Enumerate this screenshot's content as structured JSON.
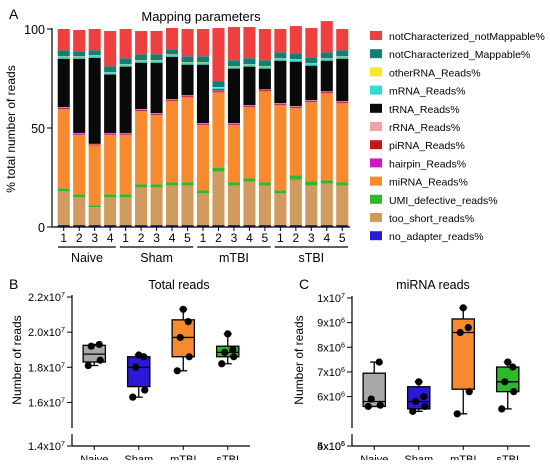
{
  "colors": {
    "notCharacterized_notMappable": "#ef4040",
    "notCharacterized_Mappable": "#0f8078",
    "otherRNA": "#f7e733",
    "mRNA": "#36d8d0",
    "tRNA": "#0a0a0a",
    "rRNA": "#f4a3a3",
    "piRNA": "#c01818",
    "hairpin": "#d118c8",
    "miRNA": "#f78a2e",
    "UMI_defective": "#2cba2c",
    "too_short": "#d19a5e",
    "no_adapter": "#2a1ad8"
  },
  "chart_data": [
    {
      "panel": "A",
      "type": "bar",
      "stacked": true,
      "title": "Mapping parameters",
      "xlabel": "",
      "ylabel": "% total number of reads",
      "ylim": [
        0,
        100
      ],
      "yticks": [
        0,
        50,
        100
      ],
      "group_labels": [
        "Naive",
        "Sham",
        "mTBI",
        "sTBI"
      ],
      "groups": [
        4,
        5,
        5,
        5
      ],
      "categories": [
        "1",
        "2",
        "3",
        "4",
        "1",
        "2",
        "3",
        "4",
        "5",
        "1",
        "2",
        "3",
        "4",
        "5",
        "1",
        "2",
        "3",
        "4",
        "5"
      ],
      "legend": "right",
      "legend_entries": [
        {
          "key": "notCharacterized_notMappable",
          "label": "notCharacterized_notMappable%"
        },
        {
          "key": "notCharacterized_Mappable",
          "label": "notCharacterized_Mappable%"
        },
        {
          "key": "otherRNA",
          "label": "otherRNA_Reads%"
        },
        {
          "key": "mRNA",
          "label": "mRNA_Reads%"
        },
        {
          "key": "tRNA",
          "label": "tRNA_Reads%"
        },
        {
          "key": "rRNA",
          "label": "rRNA_Reads%"
        },
        {
          "key": "piRNA",
          "label": "piRNA_Reads%"
        },
        {
          "key": "hairpin",
          "label": "hairpin_Reads%"
        },
        {
          "key": "miRNA",
          "label": "miRNA_Reads%"
        },
        {
          "key": "UMI_defective",
          "label": "UMI_defective_reads%"
        },
        {
          "key": "too_short",
          "label": "too_short_reads%"
        },
        {
          "key": "no_adapter",
          "label": "no_adapter_reads%"
        }
      ],
      "series": [
        {
          "key": "no_adapter",
          "values": [
            1,
            1,
            1,
            1,
            1,
            1,
            1,
            1,
            1,
            1,
            1,
            1,
            1,
            1,
            1,
            1,
            1,
            1,
            1
          ]
        },
        {
          "key": "too_short",
          "values": [
            17,
            14,
            9,
            14,
            14,
            19,
            19,
            20,
            20,
            16,
            27,
            20,
            22,
            20,
            16,
            23,
            20,
            21,
            20
          ]
        },
        {
          "key": "UMI_defective",
          "values": [
            1.5,
            1.5,
            1,
            1.5,
            1.5,
            1.5,
            1.5,
            1.5,
            1.5,
            1.5,
            2,
            1.5,
            1.5,
            1.5,
            1.5,
            2,
            2,
            1.5,
            1.5
          ]
        },
        {
          "key": "miRNA",
          "values": [
            40,
            30,
            30,
            30,
            30,
            37,
            35,
            41,
            43,
            33,
            38,
            29,
            36,
            46,
            43,
            34,
            40,
            44,
            40
          ]
        },
        {
          "key": "hairpin",
          "values": [
            0.3,
            0.3,
            0.3,
            0.3,
            0.3,
            0.3,
            0.3,
            0.3,
            0.3,
            0.3,
            0.3,
            0.3,
            0.3,
            0.3,
            0.3,
            0.3,
            0.3,
            0.3,
            0.3
          ]
        },
        {
          "key": "piRNA",
          "values": [
            0.4,
            0.4,
            0.4,
            0.4,
            0.4,
            0.4,
            0.4,
            0.4,
            0.4,
            0.4,
            0.4,
            0.4,
            0.4,
            0.4,
            0.4,
            0.4,
            0.4,
            0.4,
            0.4
          ]
        },
        {
          "key": "rRNA",
          "values": [
            0.3,
            0.3,
            0.3,
            0.3,
            0.3,
            0.3,
            0.3,
            0.3,
            0.3,
            0.3,
            0.3,
            0.3,
            0.3,
            0.3,
            0.3,
            0.3,
            0.3,
            0.3,
            0.3
          ]
        },
        {
          "key": "tRNA",
          "values": [
            24.5,
            37.5,
            43.5,
            29.5,
            33.5,
            23.5,
            25.5,
            21.5,
            15.5,
            29.5,
            0.5,
            27.5,
            19.5,
            10.5,
            21.5,
            22.5,
            17.5,
            15.5,
            21.5
          ]
        },
        {
          "key": "mRNA",
          "values": [
            1,
            1,
            1,
            1,
            1,
            1,
            1,
            1,
            1,
            1,
            1,
            1,
            1,
            1,
            1,
            1,
            1,
            1,
            1
          ]
        },
        {
          "key": "otherRNA",
          "values": [
            0.2,
            0.2,
            0.2,
            0.2,
            0.2,
            0.2,
            0.2,
            0.2,
            0.2,
            0.2,
            0.2,
            0.2,
            0.2,
            0.2,
            0.2,
            0.2,
            0.2,
            0.2,
            0.2
          ]
        },
        {
          "key": "notCharacterized_Mappable",
          "values": [
            3,
            2.5,
            2.5,
            3,
            3,
            3,
            3,
            2.5,
            3,
            3,
            3,
            3,
            3,
            3,
            3,
            3,
            3,
            3,
            3
          ]
        },
        {
          "key": "notCharacterized_notMappable",
          "values": [
            10.8,
            10.8,
            10.8,
            17.8,
            14.8,
            11.8,
            11.8,
            10.8,
            13.8,
            13.8,
            26.8,
            16.8,
            15.8,
            15.8,
            11.8,
            13.8,
            14.8,
            15.8,
            10.8
          ]
        }
      ]
    },
    {
      "panel": "B",
      "type": "boxplot",
      "title": "Total reads",
      "ylabel": "Number of reads",
      "categories": [
        "Naive",
        "Sham",
        "mTBI",
        "sTBI"
      ],
      "box_colors": [
        "#a8a8a8",
        "#2a1ad8",
        "#f78a2e",
        "#2cba2c"
      ],
      "yticks": [
        "1.4x10^7",
        "1.6x10^7",
        "1.8x10^7",
        "2.0x10^7",
        "2.2x10^7"
      ],
      "ylim": [
        14000000.0,
        22000000.0
      ],
      "y_axis_break": [
        14100000.0,
        15000000.0
      ],
      "boxes": [
        {
          "min": 18100000.0,
          "q1": 18300000.0,
          "median": 18750000.0,
          "q3": 19250000.0,
          "max": 19300000.0,
          "points": [
            18100000.0,
            18400000.0,
            19200000.0,
            19300000.0
          ]
        },
        {
          "min": 16300000.0,
          "q1": 16900000.0,
          "median": 18000000.0,
          "q3": 18600000.0,
          "max": 18700000.0,
          "points": [
            16300000.0,
            16700000.0,
            18000000.0,
            18600000.0,
            18700000.0
          ]
        },
        {
          "min": 17800000.0,
          "q1": 18600000.0,
          "median": 19700000.0,
          "q3": 20700000.0,
          "max": 21300000.0,
          "points": [
            17800000.0,
            18600000.0,
            19700000.0,
            20600000.0,
            21300000.0
          ]
        },
        {
          "min": 18200000.0,
          "q1": 18600000.0,
          "median": 18850000.0,
          "q3": 19200000.0,
          "max": 19900000.0,
          "points": [
            18200000.0,
            18600000.0,
            18850000.0,
            19000000.0,
            19900000.0
          ]
        }
      ]
    },
    {
      "panel": "C",
      "type": "boxplot",
      "title": "miRNA reads",
      "ylabel": "Number of reads",
      "categories": [
        "Naive",
        "Sham",
        "mTBI",
        "sTBI"
      ],
      "box_colors": [
        "#a8a8a8",
        "#2a1ad8",
        "#f78a2e",
        "#2cba2c"
      ],
      "yticks": [
        "4x10^6",
        "5x10^6",
        "6x10^6",
        "7x10^6",
        "8x10^6",
        "9x10^6",
        "1x10^7"
      ],
      "ylim": [
        4000000.0,
        10000000.0
      ],
      "y_axis_break": [
        4100000.0,
        5050000.0
      ],
      "boxes": [
        {
          "min": 5600000.0,
          "q1": 5600000.0,
          "median": 5800000.0,
          "q3": 6950000.0,
          "max": 7400000.0,
          "points": [
            5600000.0,
            5650000.0,
            5900000.0,
            7400000.0
          ]
        },
        {
          "min": 5400000.0,
          "q1": 5500000.0,
          "median": 5800000.0,
          "q3": 6400000.0,
          "max": 6600000.0,
          "points": [
            5400000.0,
            5600000.0,
            5800000.0,
            6000000.0,
            6600000.0
          ]
        },
        {
          "min": 5300000.0,
          "q1": 6300000.0,
          "median": 8600000.0,
          "q3": 9150000.0,
          "max": 9600000.0,
          "points": [
            5300000.0,
            6200000.0,
            8600000.0,
            8800000.0,
            9600000.0
          ]
        },
        {
          "min": 5500000.0,
          "q1": 6200000.0,
          "median": 6600000.0,
          "q3": 7200000.0,
          "max": 7400000.0,
          "points": [
            5500000.0,
            6200000.0,
            6600000.0,
            7200000.0,
            7400000.0
          ]
        }
      ]
    }
  ],
  "panel_labels": {
    "a": "A",
    "b": "B",
    "c": "C"
  }
}
